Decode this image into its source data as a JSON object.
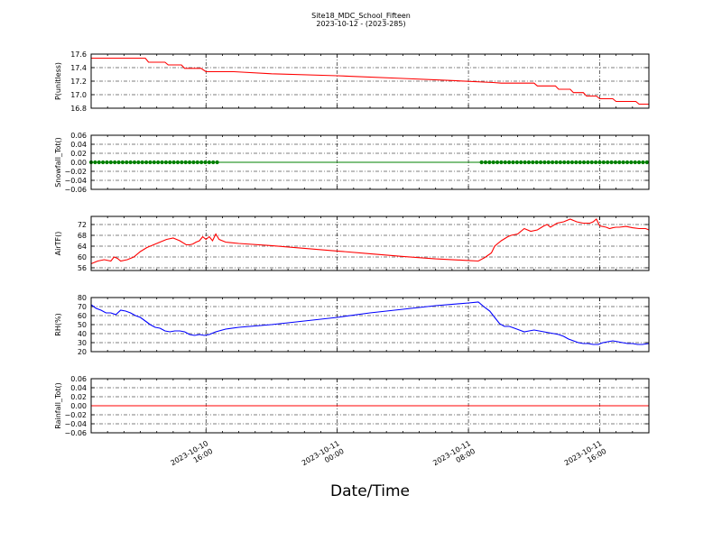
{
  "title": "Site18_MDC_School_Fifteen",
  "subtitle": "2023-10-12 - (2023-285)",
  "xlabel": "Date/Time",
  "x_ticks": [
    {
      "x": 16,
      "line1": "2023-10-10",
      "line2": "16:00"
    },
    {
      "x": 24,
      "line1": "2023-10-11",
      "line2": "00:00"
    },
    {
      "x": 32,
      "line1": "2023-10-11",
      "line2": "08:00"
    },
    {
      "x": 40,
      "line1": "2023-10-11",
      "line2": "16:00"
    }
  ],
  "chart_data": [
    {
      "type": "line",
      "ylabel": "P(unitless)",
      "color": "#ff0000",
      "xlim": [
        9,
        43
      ],
      "ylim": [
        16.8,
        17.6
      ],
      "grid": true,
      "yticks": [
        17.6,
        17.4,
        17.2,
        17.0,
        16.8
      ],
      "ytick_labels": [
        "17.6",
        "17.4",
        "17.2",
        "17.0",
        "16.8"
      ],
      "x": [
        9,
        12,
        12.3,
        12.5,
        13.5,
        13.7,
        14.5,
        14.7,
        15.7,
        16.0,
        17.7,
        20,
        24,
        28,
        31,
        33.5,
        34,
        35.2,
        36,
        36.2,
        37.3,
        37.5,
        38.2,
        38.4,
        39.0,
        39.2,
        39.8,
        40.0,
        40.8,
        41.0,
        42.2,
        42.4,
        43
      ],
      "values": [
        17.54,
        17.54,
        17.54,
        17.48,
        17.48,
        17.44,
        17.44,
        17.39,
        17.39,
        17.34,
        17.34,
        17.31,
        17.28,
        17.24,
        17.21,
        17.18,
        17.17,
        17.17,
        17.17,
        17.13,
        17.13,
        17.08,
        17.08,
        17.03,
        17.03,
        16.98,
        16.98,
        16.94,
        16.94,
        16.9,
        16.9,
        16.86,
        16.86
      ]
    },
    {
      "type": "line",
      "ylabel": "Snowfall_Tot()",
      "color": "#008000",
      "xlim": [
        9,
        43
      ],
      "ylim": [
        -0.06,
        0.06
      ],
      "grid": true,
      "yticks": [
        0.06,
        0.04,
        0.02,
        0.0,
        -0.02,
        -0.04,
        -0.06
      ],
      "ytick_labels": [
        "0.06",
        "0.04",
        "0.02",
        "0.00",
        "−0.02",
        "−0.04",
        "−0.06"
      ],
      "x": [
        9,
        43
      ],
      "values": [
        0,
        0
      ],
      "marker_segments": [
        [
          9,
          16.8
        ],
        [
          32.8,
          43
        ]
      ],
      "marker_spacing": 0.24
    },
    {
      "type": "line",
      "ylabel": "AirTF()",
      "color": "#ff0000",
      "xlim": [
        9,
        43
      ],
      "ylim": [
        55,
        75
      ],
      "grid": true,
      "yticks": [
        72,
        68,
        64,
        60,
        56
      ],
      "ytick_labels": [
        "72",
        "68",
        "64",
        "60",
        "56"
      ],
      "x": [
        9,
        9.4,
        9.8,
        10.2,
        10.4,
        10.6,
        10.8,
        11.2,
        11.6,
        12,
        12.4,
        12.8,
        13.2,
        13.6,
        14,
        14.4,
        14.8,
        15,
        15.2,
        15.4,
        15.6,
        15.8,
        16,
        16.2,
        16.4,
        16.6,
        16.8,
        17.2,
        18,
        20,
        22,
        24,
        26,
        28,
        30,
        32,
        32.6,
        33,
        33.4,
        33.6,
        34,
        34.4,
        34.6,
        35,
        35.4,
        35.8,
        36.2,
        36.6,
        36.8,
        37,
        37.4,
        37.8,
        38.2,
        38.6,
        39,
        39.4,
        39.6,
        39.8,
        40,
        40.4,
        40.6,
        40.8,
        41,
        41.2,
        41.6,
        42,
        42.4,
        42.8,
        43
      ],
      "values": [
        57.5,
        58.5,
        59,
        58.5,
        60,
        59.5,
        58.5,
        59,
        60,
        62,
        63.5,
        64.5,
        65.5,
        66.5,
        67,
        66,
        64.5,
        64.5,
        64.8,
        65.5,
        66,
        67.5,
        66.5,
        67.5,
        66,
        68.5,
        66.5,
        65.5,
        65,
        64.2,
        63.2,
        62.2,
        61.2,
        60.2,
        59.3,
        58.7,
        58.5,
        59.8,
        61.5,
        64,
        66,
        67.5,
        68,
        68.5,
        70.5,
        69.5,
        70,
        71.5,
        72,
        71,
        72.5,
        73,
        74,
        73,
        72.5,
        72.5,
        73,
        74,
        71.5,
        71,
        70.5,
        70.8,
        71,
        71,
        71.3,
        70.8,
        70.5,
        70.5,
        70
      ]
    },
    {
      "type": "line",
      "ylabel": "RH(%)",
      "color": "#0000ff",
      "xlim": [
        9,
        43
      ],
      "ylim": [
        20,
        80
      ],
      "grid": true,
      "yticks": [
        80,
        70,
        60,
        50,
        40,
        30,
        20
      ],
      "ytick_labels": [
        "80",
        "70",
        "60",
        "50",
        "40",
        "30",
        "20"
      ],
      "x": [
        9,
        9.3,
        9.6,
        9.9,
        10.2,
        10.5,
        10.8,
        11.1,
        11.4,
        11.7,
        12,
        12.3,
        12.6,
        12.9,
        13.2,
        13.5,
        13.8,
        14.1,
        14.4,
        14.7,
        15,
        15.3,
        15.6,
        15.9,
        16.2,
        16.6,
        17.2,
        18,
        20,
        22,
        24,
        26,
        28,
        30,
        32,
        32.6,
        33,
        33.3,
        33.6,
        33.9,
        34.2,
        34.5,
        34.8,
        35.1,
        35.4,
        35.7,
        36,
        36.3,
        36.6,
        36.9,
        37.2,
        37.5,
        37.8,
        38.1,
        38.4,
        38.7,
        39.0,
        39.3,
        39.6,
        39.9,
        40.2,
        40.5,
        40.8,
        41.1,
        41.4,
        41.7,
        42.0,
        42.3,
        42.6,
        43
      ],
      "values": [
        72,
        68,
        66,
        63,
        63,
        61,
        66,
        65,
        63,
        60,
        58,
        54,
        50,
        47,
        46,
        43,
        42,
        43,
        43,
        42,
        39,
        38,
        39,
        38,
        39,
        42,
        45,
        47,
        50,
        54,
        58,
        63,
        67,
        71,
        74,
        75,
        69,
        65,
        58,
        51,
        48,
        48,
        46,
        44,
        42,
        43,
        44,
        43,
        42,
        41,
        40,
        39,
        37,
        34,
        32,
        30,
        29,
        29,
        28,
        28,
        30,
        31,
        32,
        31,
        30,
        29,
        29,
        28,
        28,
        29
      ]
    },
    {
      "type": "line",
      "ylabel": "Rainfall_Tot()",
      "color": "#ff0000",
      "xlim": [
        9,
        43
      ],
      "ylim": [
        -0.06,
        0.06
      ],
      "grid": true,
      "yticks": [
        0.06,
        0.04,
        0.02,
        0.0,
        -0.02,
        -0.04,
        -0.06
      ],
      "ytick_labels": [
        "0.06",
        "0.04",
        "0.02",
        "0.00",
        "−0.02",
        "−0.04",
        "−0.06"
      ],
      "x": [
        9,
        43
      ],
      "values": [
        0,
        0
      ]
    }
  ]
}
